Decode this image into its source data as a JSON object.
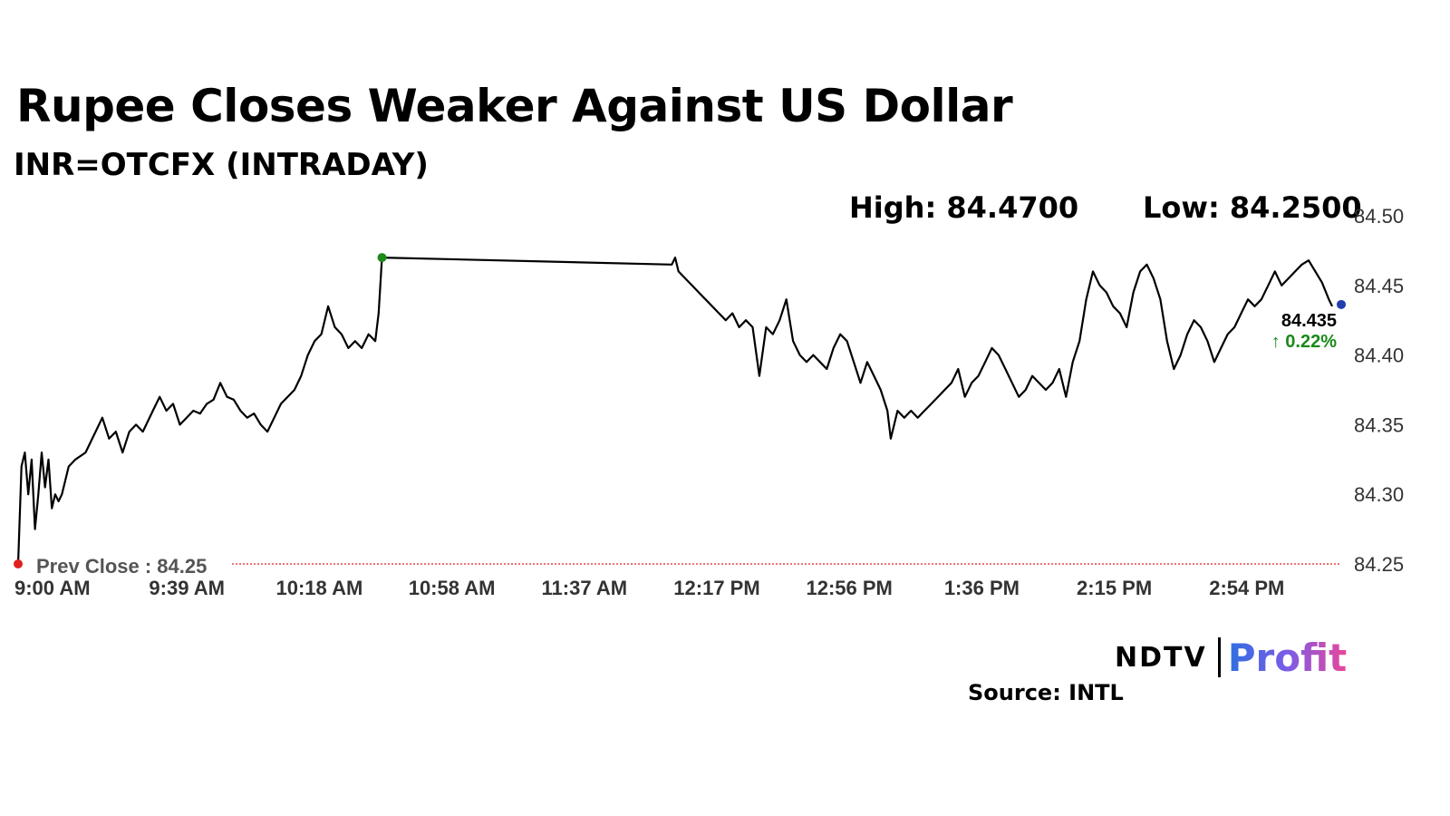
{
  "header": {
    "title": "Rupee Closes Weaker Against US Dollar",
    "subtitle": "INR=OTCFX (INTRADAY)"
  },
  "stats": {
    "high": "High: 84.4700",
    "low": "Low: 84.2500"
  },
  "source": "Source: INTL",
  "logo": {
    "ndtv": "NDTV",
    "profit": "Profit",
    "colors": [
      "#2f6fe0",
      "#7a5ce8",
      "#e8479a"
    ]
  },
  "chart_data": {
    "type": "line",
    "title": "Rupee Closes Weaker Against US Dollar",
    "subtitle": "INR=OTCFX (INTRADAY)",
    "x_ticks": [
      "9:00 AM",
      "9:39 AM",
      "10:18 AM",
      "10:58 AM",
      "11:37 AM",
      "12:17 PM",
      "12:56 PM",
      "1:36 PM",
      "2:15 PM",
      "2:54 PM"
    ],
    "y_ticks": [
      "84.50",
      "84.45",
      "84.40",
      "84.35",
      "84.30",
      "84.25"
    ],
    "ylim": [
      84.25,
      84.5
    ],
    "grid": false,
    "prev_close": {
      "label": "Prev Close : 84.25",
      "value": 84.25
    },
    "last": {
      "value": "84.435",
      "change": "0.22%"
    },
    "colors": {
      "line": "#000000",
      "prev_close": "#e02020",
      "start_dot": "#e02020",
      "peak_dot": "#1a8a1a",
      "last_dot": "#1f3fae",
      "change": "#1a8a1a"
    },
    "series": [
      {
        "values": [
          [
            "9:00",
            84.25
          ],
          [
            "9:01",
            84.32
          ],
          [
            "9:02",
            84.33
          ],
          [
            "9:03",
            84.3
          ],
          [
            "9:04",
            84.325
          ],
          [
            "9:05",
            84.275
          ],
          [
            "9:06",
            84.3
          ],
          [
            "9:07",
            84.33
          ],
          [
            "9:08",
            84.305
          ],
          [
            "9:09",
            84.325
          ],
          [
            "9:10",
            84.29
          ],
          [
            "9:11",
            84.3
          ],
          [
            "9:12",
            84.295
          ],
          [
            "9:13",
            84.3
          ],
          [
            "9:15",
            84.32
          ],
          [
            "9:17",
            84.325
          ],
          [
            "9:20",
            84.33
          ],
          [
            "9:23",
            84.345
          ],
          [
            "9:25",
            84.355
          ],
          [
            "9:27",
            84.34
          ],
          [
            "9:29",
            84.345
          ],
          [
            "9:31",
            84.33
          ],
          [
            "9:33",
            84.345
          ],
          [
            "9:35",
            84.35
          ],
          [
            "9:37",
            84.345
          ],
          [
            "9:40",
            84.36
          ],
          [
            "9:42",
            84.37
          ],
          [
            "9:44",
            84.36
          ],
          [
            "9:46",
            84.365
          ],
          [
            "9:48",
            84.35
          ],
          [
            "9:50",
            84.355
          ],
          [
            "9:52",
            84.36
          ],
          [
            "9:54",
            84.358
          ],
          [
            "9:56",
            84.365
          ],
          [
            "9:58",
            84.368
          ],
          [
            "10:00",
            84.38
          ],
          [
            "10:02",
            84.37
          ],
          [
            "10:04",
            84.368
          ],
          [
            "10:06",
            84.36
          ],
          [
            "10:08",
            84.355
          ],
          [
            "10:10",
            84.358
          ],
          [
            "10:12",
            84.35
          ],
          [
            "10:14",
            84.345
          ],
          [
            "10:16",
            84.355
          ],
          [
            "10:18",
            84.365
          ],
          [
            "10:20",
            84.37
          ],
          [
            "10:22",
            84.375
          ],
          [
            "10:24",
            84.385
          ],
          [
            "10:26",
            84.4
          ],
          [
            "10:28",
            84.41
          ],
          [
            "10:30",
            84.415
          ],
          [
            "10:32",
            84.435
          ],
          [
            "10:34",
            84.42
          ],
          [
            "10:36",
            84.415
          ],
          [
            "10:38",
            84.405
          ],
          [
            "10:40",
            84.41
          ],
          [
            "10:42",
            84.405
          ],
          [
            "10:44",
            84.415
          ],
          [
            "10:46",
            84.41
          ],
          [
            "10:47",
            84.43
          ],
          [
            "10:48",
            84.47
          ],
          [
            "12:14",
            84.465
          ],
          [
            "12:15",
            84.47
          ],
          [
            "12:16",
            84.46
          ],
          [
            "12:18",
            84.455
          ],
          [
            "12:20",
            84.45
          ],
          [
            "12:22",
            84.445
          ],
          [
            "12:24",
            84.44
          ],
          [
            "12:26",
            84.435
          ],
          [
            "12:28",
            84.43
          ],
          [
            "12:30",
            84.425
          ],
          [
            "12:32",
            84.43
          ],
          [
            "12:34",
            84.42
          ],
          [
            "12:36",
            84.425
          ],
          [
            "12:38",
            84.42
          ],
          [
            "12:40",
            84.385
          ],
          [
            "12:42",
            84.42
          ],
          [
            "12:44",
            84.415
          ],
          [
            "12:46",
            84.425
          ],
          [
            "12:48",
            84.44
          ],
          [
            "12:50",
            84.41
          ],
          [
            "12:52",
            84.4
          ],
          [
            "12:54",
            84.395
          ],
          [
            "12:56",
            84.4
          ],
          [
            "12:58",
            84.395
          ],
          [
            "13:00",
            84.39
          ],
          [
            "13:02",
            84.405
          ],
          [
            "13:04",
            84.415
          ],
          [
            "13:06",
            84.41
          ],
          [
            "13:08",
            84.395
          ],
          [
            "13:10",
            84.38
          ],
          [
            "13:12",
            84.395
          ],
          [
            "13:14",
            84.385
          ],
          [
            "13:16",
            84.375
          ],
          [
            "13:18",
            84.36
          ],
          [
            "13:19",
            84.34
          ],
          [
            "13:21",
            84.36
          ],
          [
            "13:23",
            84.355
          ],
          [
            "13:25",
            84.36
          ],
          [
            "13:27",
            84.355
          ],
          [
            "13:29",
            84.36
          ],
          [
            "13:31",
            84.365
          ],
          [
            "13:33",
            84.37
          ],
          [
            "13:35",
            84.375
          ],
          [
            "13:37",
            84.38
          ],
          [
            "13:39",
            84.39
          ],
          [
            "13:41",
            84.37
          ],
          [
            "13:43",
            84.38
          ],
          [
            "13:45",
            84.385
          ],
          [
            "13:47",
            84.395
          ],
          [
            "13:49",
            84.405
          ],
          [
            "13:51",
            84.4
          ],
          [
            "13:53",
            84.39
          ],
          [
            "13:55",
            84.38
          ],
          [
            "13:57",
            84.37
          ],
          [
            "13:59",
            84.375
          ],
          [
            "14:01",
            84.385
          ],
          [
            "14:03",
            84.38
          ],
          [
            "14:05",
            84.375
          ],
          [
            "14:07",
            84.38
          ],
          [
            "14:09",
            84.39
          ],
          [
            "14:11",
            84.37
          ],
          [
            "14:13",
            84.395
          ],
          [
            "14:15",
            84.41
          ],
          [
            "14:17",
            84.44
          ],
          [
            "14:19",
            84.46
          ],
          [
            "14:21",
            84.45
          ],
          [
            "14:23",
            84.445
          ],
          [
            "14:25",
            84.435
          ],
          [
            "14:27",
            84.43
          ],
          [
            "14:29",
            84.42
          ],
          [
            "14:31",
            84.445
          ],
          [
            "14:33",
            84.46
          ],
          [
            "14:35",
            84.465
          ],
          [
            "14:37",
            84.455
          ],
          [
            "14:39",
            84.44
          ],
          [
            "14:41",
            84.41
          ],
          [
            "14:43",
            84.39
          ],
          [
            "14:45",
            84.4
          ],
          [
            "14:47",
            84.415
          ],
          [
            "14:49",
            84.425
          ],
          [
            "14:51",
            84.42
          ],
          [
            "14:53",
            84.41
          ],
          [
            "14:55",
            84.395
          ],
          [
            "14:57",
            84.405
          ],
          [
            "14:59",
            84.415
          ],
          [
            "15:01",
            84.42
          ],
          [
            "15:03",
            84.43
          ],
          [
            "15:05",
            84.44
          ],
          [
            "15:07",
            84.435
          ],
          [
            "15:09",
            84.44
          ],
          [
            "15:11",
            84.45
          ],
          [
            "15:13",
            84.46
          ],
          [
            "15:15",
            84.45
          ],
          [
            "15:17",
            84.455
          ],
          [
            "15:19",
            84.46
          ],
          [
            "15:21",
            84.465
          ],
          [
            "15:23",
            84.468
          ],
          [
            "15:25",
            84.46
          ],
          [
            "15:27",
            84.452
          ],
          [
            "15:29",
            84.44
          ],
          [
            "15:30",
            84.435
          ]
        ]
      }
    ]
  }
}
